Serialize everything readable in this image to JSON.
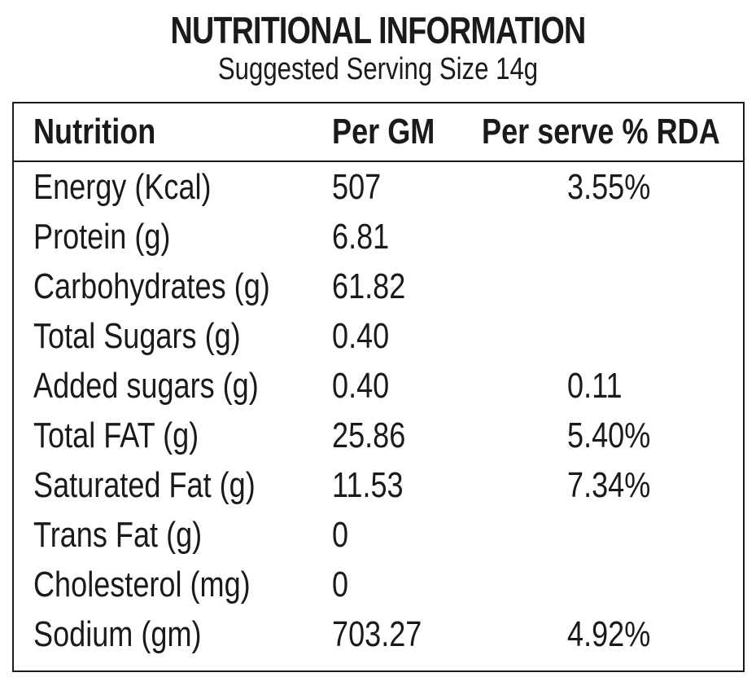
{
  "title": "NUTRITIONAL INFORMATION",
  "subtitle": "Suggested Serving Size 14g",
  "table": {
    "headers": [
      "Nutrition",
      "Per GM",
      "Per serve % RDA"
    ],
    "rows": [
      {
        "nutrient": "Energy (Kcal)",
        "per_gm": "507",
        "rda": "3.55%"
      },
      {
        "nutrient": "Protein (g)",
        "per_gm": "6.81",
        "rda": ""
      },
      {
        "nutrient": "Carbohydrates (g)",
        "per_gm": "61.82",
        "rda": ""
      },
      {
        "nutrient": "Total Sugars (g)",
        "per_gm": "0.40",
        "rda": ""
      },
      {
        "nutrient": "Added sugars (g)",
        "per_gm": "0.40",
        "rda": "0.11"
      },
      {
        "nutrient": "Total FAT (g)",
        "per_gm": "25.86",
        "rda": "5.40%"
      },
      {
        "nutrient": "Saturated Fat (g)",
        "per_gm": "11.53",
        "rda": "7.34%"
      },
      {
        "nutrient": "Trans Fat (g)",
        "per_gm": "0",
        "rda": ""
      },
      {
        "nutrient": "Cholesterol (mg)",
        "per_gm": "0",
        "rda": ""
      },
      {
        "nutrient": "Sodium (gm)",
        "per_gm": "703.27",
        "rda": "4.92%"
      }
    ]
  }
}
